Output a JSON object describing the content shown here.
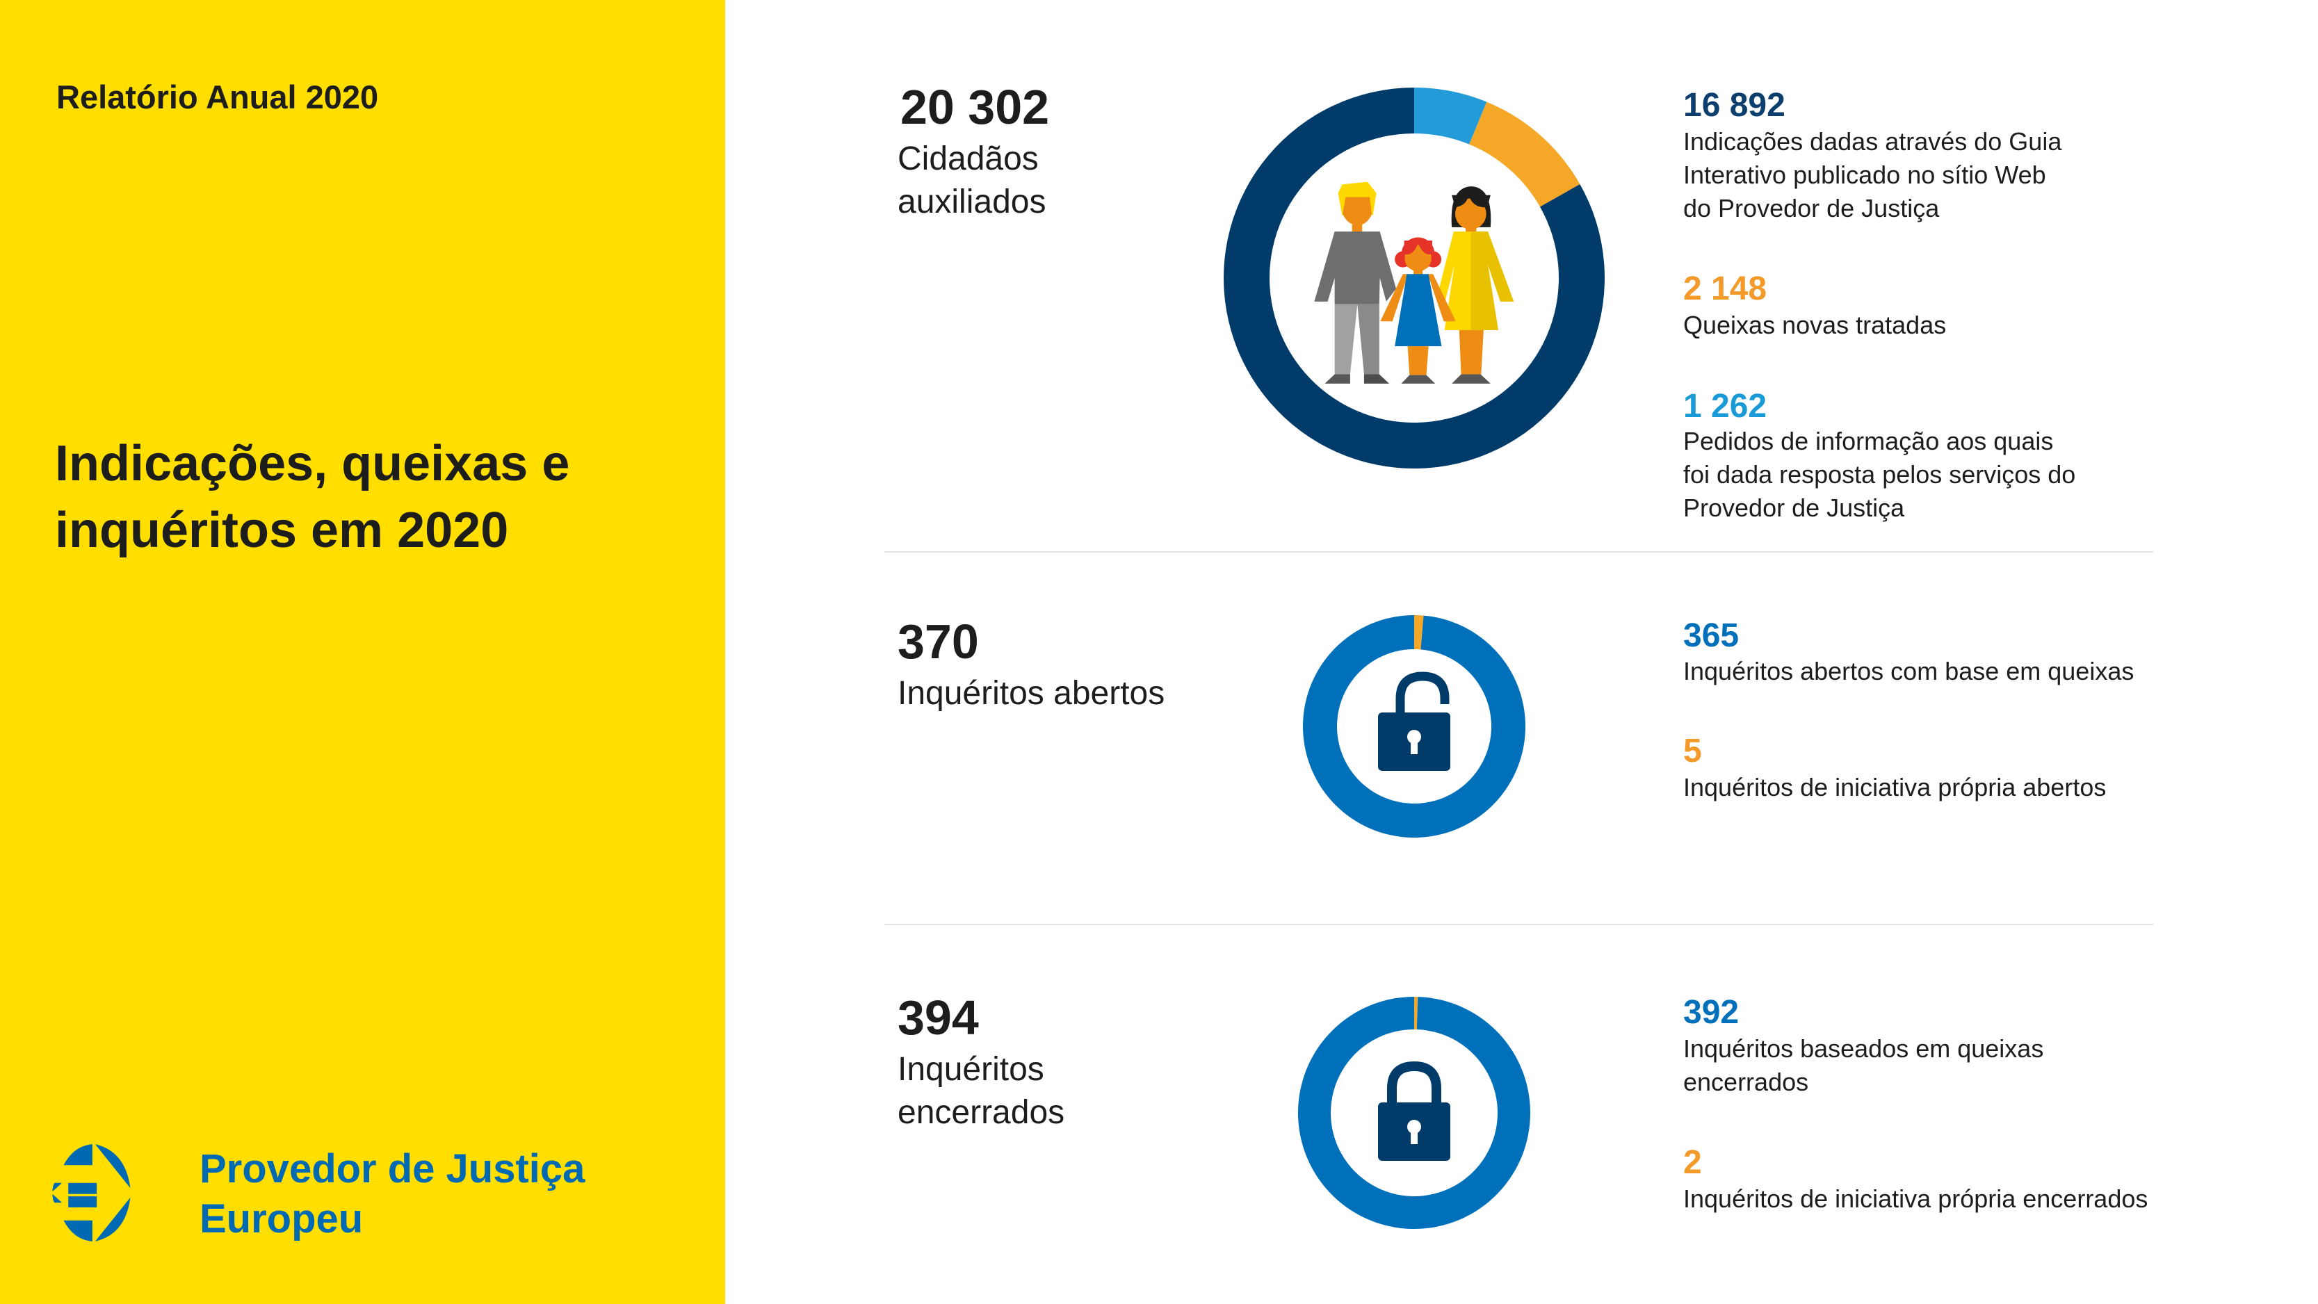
{
  "left_panel": {
    "report_label": "Relatório Anual 2020",
    "title_lines": [
      "Indicações, queixas e",
      "inquéritos em 2020"
    ],
    "logo": {
      "lines": [
        "Provedor de Justiça",
        "Europeu"
      ],
      "color": "#0069B4"
    },
    "background": "#FFDE00"
  },
  "sections": [
    {
      "total": "20 302",
      "total_label_lines": [
        "Cidadãos",
        "auxiliados"
      ],
      "icon": "family-icon",
      "items": [
        {
          "value": "16 892",
          "color": "#0D3F6E",
          "lines": [
            "Indicações dadas através do Guia",
            "Interativo publicado no sítio Web",
            "do Provedor de Justiça"
          ]
        },
        {
          "value": "2 148",
          "color": "#F39A2A",
          "lines": [
            "Queixas novas tratadas"
          ]
        },
        {
          "value": "1 262",
          "color": "#1A9AD6",
          "lines": [
            "Pedidos de informação aos quais",
            "foi dada resposta pelos serviços do",
            "Provedor de Justiça"
          ]
        }
      ]
    },
    {
      "total": "370",
      "total_label_lines": [
        "Inquéritos abertos"
      ],
      "icon": "open-padlock-icon",
      "items": [
        {
          "value": "365",
          "color": "#0070BA",
          "lines": [
            "Inquéritos abertos com base em queixas"
          ]
        },
        {
          "value": "5",
          "color": "#F39A2A",
          "lines": [
            "Inquéritos de iniciativa própria abertos"
          ]
        }
      ]
    },
    {
      "total": "394",
      "total_label_lines": [
        "Inquéritos",
        "encerrados"
      ],
      "icon": "closed-padlock-icon",
      "items": [
        {
          "value": "392",
          "color": "#0070BA",
          "lines": [
            "Inquéritos baseados em queixas",
            "encerrados"
          ]
        },
        {
          "value": "2",
          "color": "#F39A2A",
          "lines": [
            "Inquéritos de iniciativa própria encerrados"
          ]
        }
      ]
    }
  ],
  "chart_data": [
    {
      "type": "pie",
      "donut": true,
      "start": "top",
      "direction": "clockwise",
      "slices": [
        {
          "value": 1262,
          "color": "#239BD8"
        },
        {
          "value": 2148,
          "color": "#F5A727"
        },
        {
          "value": 16892,
          "color": "#003B6A"
        }
      ]
    },
    {
      "type": "pie",
      "donut": true,
      "start": "top",
      "direction": "clockwise",
      "slices": [
        {
          "value": 5,
          "color": "#F5A727"
        },
        {
          "value": 365,
          "color": "#0070BA"
        }
      ]
    },
    {
      "type": "pie",
      "donut": true,
      "start": "top",
      "direction": "clockwise",
      "slices": [
        {
          "value": 2,
          "color": "#F5A727"
        },
        {
          "value": 392,
          "color": "#0070BA"
        }
      ]
    }
  ]
}
